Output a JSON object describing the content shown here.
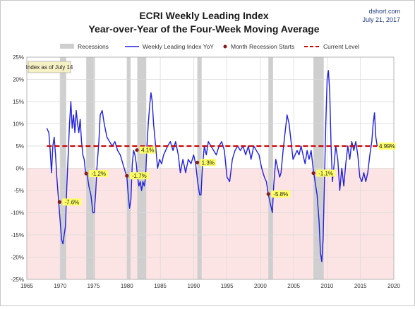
{
  "chart_data": {
    "type": "line",
    "title": "ECRI Weekly Leading Index",
    "subtitle": "Year-over-Year of the Four-Week Moving Average",
    "source": "dshort.com",
    "date": "July 21, 2017",
    "annotation_box": "Index as of July 14",
    "xlim": [
      1965,
      2020
    ],
    "ylim": [
      -25,
      25
    ],
    "x_ticks": [
      "1965",
      "1970",
      "1975",
      "1980",
      "1985",
      "1990",
      "1995",
      "2000",
      "2005",
      "2010",
      "2015",
      "2020"
    ],
    "y_ticks": [
      "25%",
      "20%",
      "15%",
      "10%",
      "5%",
      "0%",
      "-5%",
      "-10%",
      "-15%",
      "-20%",
      "-25%"
    ],
    "grid": true,
    "legend_position": "top",
    "legend": {
      "recessions": "Recessions",
      "series": "Weekly Leading Index YoY",
      "starts": "Month Recession Starts",
      "current": "Current Level"
    },
    "recessions": [
      [
        1969.95,
        1970.9
      ],
      [
        1973.9,
        1975.2
      ],
      [
        1980.0,
        1980.55
      ],
      [
        1981.55,
        1982.9
      ],
      [
        1990.55,
        1991.2
      ],
      [
        2001.2,
        2001.9
      ],
      [
        2007.95,
        2009.5
      ]
    ],
    "current_level": 4.99,
    "series": [
      {
        "name": "Weekly Leading Index YoY",
        "color": "#2020e0",
        "points": [
          [
            1968.0,
            9.0
          ],
          [
            1968.3,
            8.0
          ],
          [
            1968.5,
            4.0
          ],
          [
            1968.7,
            -1.0
          ],
          [
            1968.9,
            5.0
          ],
          [
            1969.1,
            7.0
          ],
          [
            1969.3,
            3.0
          ],
          [
            1969.5,
            -2.0
          ],
          [
            1969.7,
            -6.0
          ],
          [
            1970.0,
            -12.0
          ],
          [
            1970.2,
            -16.0
          ],
          [
            1970.4,
            -17.0
          ],
          [
            1970.6,
            -15.0
          ],
          [
            1970.8,
            -13.0
          ],
          [
            1971.0,
            -4.0
          ],
          [
            1971.2,
            3.0
          ],
          [
            1971.4,
            10.0
          ],
          [
            1971.6,
            15.0
          ],
          [
            1971.8,
            9.0
          ],
          [
            1972.0,
            12.0
          ],
          [
            1972.2,
            8.0
          ],
          [
            1972.4,
            13.0
          ],
          [
            1972.6,
            10.0
          ],
          [
            1972.8,
            8.0
          ],
          [
            1973.0,
            11.0
          ],
          [
            1973.2,
            6.0
          ],
          [
            1973.4,
            3.0
          ],
          [
            1973.6,
            2.0
          ],
          [
            1973.8,
            -1.0
          ],
          [
            1974.0,
            -1.0
          ],
          [
            1974.3,
            -4.0
          ],
          [
            1974.6,
            -6.0
          ],
          [
            1974.9,
            -10.0
          ],
          [
            1975.1,
            -10.0
          ],
          [
            1975.3,
            -6.0
          ],
          [
            1975.5,
            0.0
          ],
          [
            1975.8,
            6.0
          ],
          [
            1976.0,
            12.0
          ],
          [
            1976.3,
            13.0
          ],
          [
            1976.6,
            10.0
          ],
          [
            1977.0,
            7.0
          ],
          [
            1977.4,
            6.0
          ],
          [
            1977.8,
            5.0
          ],
          [
            1978.2,
            6.0
          ],
          [
            1978.6,
            4.0
          ],
          [
            1979.0,
            3.0
          ],
          [
            1979.4,
            1.0
          ],
          [
            1979.8,
            -1.0
          ],
          [
            1980.0,
            -2.0
          ],
          [
            1980.2,
            -6.0
          ],
          [
            1980.4,
            -9.0
          ],
          [
            1980.6,
            -7.0
          ],
          [
            1980.8,
            1.0
          ],
          [
            1981.0,
            4.0
          ],
          [
            1981.2,
            3.0
          ],
          [
            1981.4,
            1.0
          ],
          [
            1981.6,
            -2.0
          ],
          [
            1981.8,
            -4.0
          ],
          [
            1982.0,
            -3.0
          ],
          [
            1982.2,
            -5.0
          ],
          [
            1982.4,
            -3.0
          ],
          [
            1982.6,
            -4.0
          ],
          [
            1982.8,
            -2.0
          ],
          [
            1983.0,
            5.0
          ],
          [
            1983.2,
            10.0
          ],
          [
            1983.4,
            14.0
          ],
          [
            1983.6,
            17.0
          ],
          [
            1983.8,
            15.0
          ],
          [
            1984.0,
            10.0
          ],
          [
            1984.3,
            5.0
          ],
          [
            1984.6,
            0.0
          ],
          [
            1984.9,
            2.0
          ],
          [
            1985.2,
            1.0
          ],
          [
            1985.5,
            3.0
          ],
          [
            1985.8,
            4.0
          ],
          [
            1986.1,
            5.0
          ],
          [
            1986.5,
            6.0
          ],
          [
            1986.9,
            4.0
          ],
          [
            1987.3,
            6.0
          ],
          [
            1987.7,
            3.0
          ],
          [
            1988.0,
            -1.0
          ],
          [
            1988.4,
            2.0
          ],
          [
            1988.8,
            -1.0
          ],
          [
            1989.2,
            2.0
          ],
          [
            1989.6,
            1.0
          ],
          [
            1990.0,
            3.0
          ],
          [
            1990.3,
            1.0
          ],
          [
            1990.6,
            -3.0
          ],
          [
            1990.9,
            -6.0
          ],
          [
            1991.1,
            -6.0
          ],
          [
            1991.3,
            0.0
          ],
          [
            1991.6,
            5.0
          ],
          [
            1991.9,
            3.0
          ],
          [
            1992.2,
            6.0
          ],
          [
            1992.6,
            5.0
          ],
          [
            1993.0,
            4.0
          ],
          [
            1993.4,
            3.0
          ],
          [
            1993.8,
            5.0
          ],
          [
            1994.2,
            6.0
          ],
          [
            1994.6,
            4.0
          ],
          [
            1995.0,
            -2.0
          ],
          [
            1995.4,
            -3.0
          ],
          [
            1995.8,
            2.0
          ],
          [
            1996.2,
            4.0
          ],
          [
            1996.6,
            5.0
          ],
          [
            1997.0,
            4.0
          ],
          [
            1997.4,
            5.0
          ],
          [
            1997.8,
            3.0
          ],
          [
            1998.2,
            5.0
          ],
          [
            1998.6,
            2.0
          ],
          [
            1999.0,
            5.0
          ],
          [
            1999.4,
            4.0
          ],
          [
            1999.8,
            3.0
          ],
          [
            2000.2,
            0.0
          ],
          [
            2000.6,
            -2.0
          ],
          [
            2000.9,
            -3.0
          ],
          [
            2001.2,
            -6.0
          ],
          [
            2001.5,
            -8.0
          ],
          [
            2001.8,
            -10.0
          ],
          [
            2002.0,
            -4.0
          ],
          [
            2002.3,
            2.0
          ],
          [
            2002.6,
            0.0
          ],
          [
            2002.9,
            -2.0
          ],
          [
            2003.1,
            -1.0
          ],
          [
            2003.4,
            4.0
          ],
          [
            2003.7,
            8.0
          ],
          [
            2004.0,
            12.0
          ],
          [
            2004.3,
            10.0
          ],
          [
            2004.6,
            6.0
          ],
          [
            2004.9,
            2.0
          ],
          [
            2005.2,
            3.0
          ],
          [
            2005.5,
            4.0
          ],
          [
            2005.8,
            3.0
          ],
          [
            2006.1,
            5.0
          ],
          [
            2006.4,
            3.0
          ],
          [
            2006.7,
            1.0
          ],
          [
            2007.0,
            4.0
          ],
          [
            2007.3,
            2.0
          ],
          [
            2007.6,
            4.0
          ],
          [
            2007.9,
            0.0
          ],
          [
            2008.2,
            -3.0
          ],
          [
            2008.5,
            -6.0
          ],
          [
            2008.8,
            -12.0
          ],
          [
            2009.0,
            -19.0
          ],
          [
            2009.2,
            -21.0
          ],
          [
            2009.4,
            -16.0
          ],
          [
            2009.6,
            -3.0
          ],
          [
            2009.8,
            10.0
          ],
          [
            2010.0,
            20.0
          ],
          [
            2010.2,
            22.0
          ],
          [
            2010.4,
            17.0
          ],
          [
            2010.6,
            5.0
          ],
          [
            2010.8,
            -3.0
          ],
          [
            2011.0,
            0.0
          ],
          [
            2011.3,
            5.0
          ],
          [
            2011.6,
            2.0
          ],
          [
            2011.9,
            -5.0
          ],
          [
            2012.2,
            0.0
          ],
          [
            2012.5,
            -4.0
          ],
          [
            2012.8,
            1.0
          ],
          [
            2013.1,
            5.0
          ],
          [
            2013.4,
            2.0
          ],
          [
            2013.7,
            6.0
          ],
          [
            2014.0,
            4.0
          ],
          [
            2014.3,
            6.0
          ],
          [
            2014.6,
            3.0
          ],
          [
            2014.9,
            -2.0
          ],
          [
            2015.2,
            -3.0
          ],
          [
            2015.5,
            -1.0
          ],
          [
            2015.8,
            -3.0
          ],
          [
            2016.1,
            -1.0
          ],
          [
            2016.4,
            3.0
          ],
          [
            2016.7,
            6.0
          ],
          [
            2016.9,
            10.0
          ],
          [
            2017.1,
            12.5
          ],
          [
            2017.3,
            7.0
          ],
          [
            2017.5,
            4.99
          ]
        ]
      }
    ],
    "recession_start_markers": [
      {
        "x": 1969.9,
        "y": -7.6,
        "label": "-7.6%"
      },
      {
        "x": 1973.9,
        "y": -1.2,
        "label": "-1.2%"
      },
      {
        "x": 1980.0,
        "y": -1.7,
        "label": "-1.7%"
      },
      {
        "x": 1981.5,
        "y": 4.1,
        "label": "4.1%"
      },
      {
        "x": 1990.55,
        "y": 1.3,
        "label": "1.3%"
      },
      {
        "x": 2001.2,
        "y": -5.8,
        "label": "-5.8%"
      },
      {
        "x": 2007.95,
        "y": -1.1,
        "label": "-1.1%"
      }
    ],
    "current_label": "4.99%",
    "colors": {
      "recession": "#cfcfcf",
      "negative_band": "#fde4e4",
      "series": "#2020e0",
      "marker": "#8b1a1a",
      "current_line": "#cc0000",
      "label_bg": "#ffff66",
      "box_bg": "#f6f1c4"
    }
  }
}
